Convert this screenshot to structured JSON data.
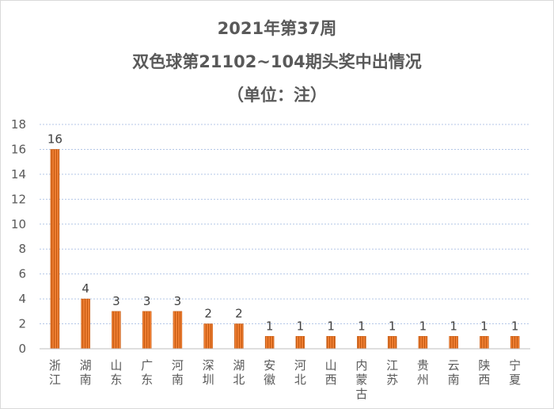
{
  "chart_data": {
    "type": "bar",
    "title_lines": [
      "2021年第37周",
      "双色球第21102~104期头奖中出情况",
      "（单位：注）"
    ],
    "categories": [
      "浙江",
      "湖南",
      "山东",
      "广东",
      "河南",
      "深圳",
      "湖北",
      "安徽",
      "河北",
      "山西",
      "内蒙古",
      "江苏",
      "贵州",
      "云南",
      "陕西",
      "宁夏"
    ],
    "values": [
      16,
      4,
      3,
      3,
      3,
      2,
      2,
      1,
      1,
      1,
      1,
      1,
      1,
      1,
      1,
      1
    ],
    "ylim": [
      0,
      18
    ],
    "yticks": [
      0,
      2,
      4,
      6,
      8,
      10,
      12,
      14,
      16,
      18
    ],
    "grid": true,
    "legend": "none",
    "data_labels": true,
    "colors": {
      "bar_fill": "#ed7d31",
      "bar_stripe": "#c55a11",
      "grid": "#b4c7e7",
      "axis": "#bfbfbf",
      "text": "#595959"
    }
  }
}
